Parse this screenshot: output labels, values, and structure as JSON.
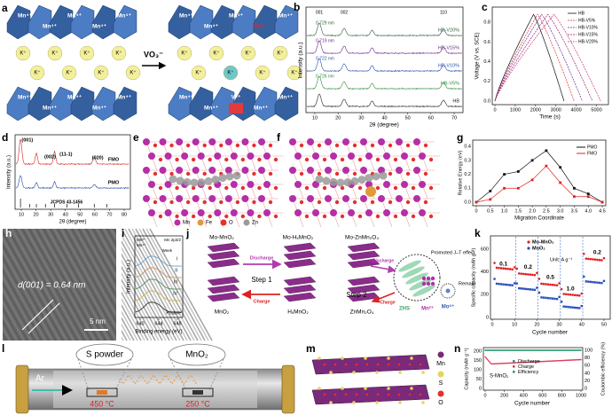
{
  "panels": {
    "a": {
      "label": "a",
      "mn4": "Mn⁴⁺",
      "mn3": "Mn³⁺",
      "k": "K⁺",
      "v": "V⁵⁺",
      "reagent": "VO₃⁻"
    },
    "b": {
      "label": "b",
      "y_label": "Intensity (a.u.)",
      "x_label": "2θ (degree)",
      "xticks": [
        "10",
        "20",
        "30",
        "40",
        "50",
        "60",
        "70"
      ],
      "peaks": [
        "001",
        "002",
        "110"
      ],
      "series": [
        "HB-V20%",
        "HB-V15%",
        "HB-V10%",
        "HB-V5%",
        "HB"
      ],
      "spacings": [
        "0.729 nm",
        "0.719 nm",
        "0.722 nm",
        "0.726 nm"
      ]
    },
    "c": {
      "label": "c",
      "y_label": "Voltage (V vs. SCE)",
      "x_label": "Time (s)",
      "yticks": [
        "0.0",
        "0.2",
        "0.4",
        "0.6",
        "0.8"
      ],
      "xticks": [
        "0",
        "1000",
        "2000",
        "3000",
        "4000",
        "5000"
      ],
      "legend": [
        "HB",
        "HB-V5%",
        "HB-V10%",
        "HB-V15%",
        "HB-V20%"
      ]
    },
    "d": {
      "label": "d",
      "peaks": [
        "(001)",
        "(002)",
        "(11-1)",
        "(020)"
      ],
      "traces": [
        "FMO",
        "PMO",
        "JCPDS 43-1456"
      ],
      "x_label": "2θ (degree)",
      "y_label": "Intensity (a.u.)",
      "xticks": [
        "10",
        "20",
        "30",
        "40",
        "50",
        "60",
        "70",
        "80"
      ]
    },
    "e": {
      "label": "e"
    },
    "f": {
      "label": "f"
    },
    "ef_legend": [
      "Mn",
      "Fe",
      "O",
      "Zn"
    ],
    "g": {
      "label": "g",
      "y_label": "Relative Energy (eV)",
      "x_label": "Migration Coordinate",
      "xticks": [
        "0",
        "0.5",
        "1.0",
        "1.5",
        "2.0",
        "2.5",
        "3.0",
        "3.5",
        "4.0",
        "4.5"
      ],
      "yticks": [
        "0.0",
        "0.1",
        "0.2",
        "0.3",
        "0.4"
      ],
      "legend": [
        "PMO",
        "FMO"
      ]
    },
    "h": {
      "label": "h",
      "spacing": "d(001) = 0.64 nm",
      "scale": "5 nm"
    },
    "i": {
      "label": "i",
      "title": "Mn 2p3/2",
      "legend": [
        "Mn³⁺",
        "Mn⁴⁺"
      ],
      "week": "Week",
      "pristine": "Pristine",
      "levels": [
        "I",
        "II",
        "III",
        "IV"
      ],
      "x_label": "Binding energy (eV)",
      "xticks": [
        "640",
        "644",
        "648"
      ],
      "y_label": "Intensity (a.u.)"
    },
    "j": {
      "label": "j",
      "states": [
        "Mo-MnO₂",
        "Mo-HₓMnO₂",
        "Mo-ZnMn₂O₄",
        "MnO₂",
        "HₓMnO₂",
        "ZnMn₂O₄"
      ],
      "discharge": "Discharge",
      "charge": "Charge",
      "step1": "Step 1",
      "step2": "Step 2",
      "promoted": "Promoted J–T effect",
      "remain": "Remain",
      "zhs": "ZHS",
      "mn2": "Mn²⁺",
      "mo6": "Mo⁶⁺"
    },
    "k": {
      "label": "k",
      "y_label": "Specific capacity (mAh g⁻¹)",
      "x_label": "Cycle number",
      "xticks": [
        "0",
        "10",
        "20",
        "30",
        "40",
        "50"
      ],
      "yticks": [
        "0",
        "200",
        "400",
        "600"
      ],
      "legend": [
        "Mo-MnO₂",
        "MnO₂"
      ],
      "rates": [
        "0.1",
        "0.2",
        "0.5",
        "1.0",
        "0.2"
      ],
      "unit": "Unit: A g⁻¹"
    },
    "l": {
      "label": "l",
      "gas": "Ar",
      "source": "S powder",
      "target": "MnO₂",
      "t1": "450 °C",
      "t2": "250 °C"
    },
    "m": {
      "label": "m",
      "legend": [
        "Mn",
        "S",
        "O"
      ]
    },
    "n": {
      "label": "n",
      "y_label": "Capacity (mAh g⁻¹)",
      "y2_label": "Coulombic efficiency (%)",
      "x_label": "Cycle number",
      "xticks": [
        "0",
        "200",
        "400",
        "600",
        "800",
        "1000"
      ],
      "yticks": [
        "0",
        "50",
        "100",
        "150",
        "200"
      ],
      "y2ticks": [
        "0",
        "20",
        "40",
        "60",
        "80",
        "100"
      ],
      "legend": [
        "Discharge",
        "Charge",
        "Efficiency"
      ],
      "sample": "S-MnO₂"
    }
  }
}
